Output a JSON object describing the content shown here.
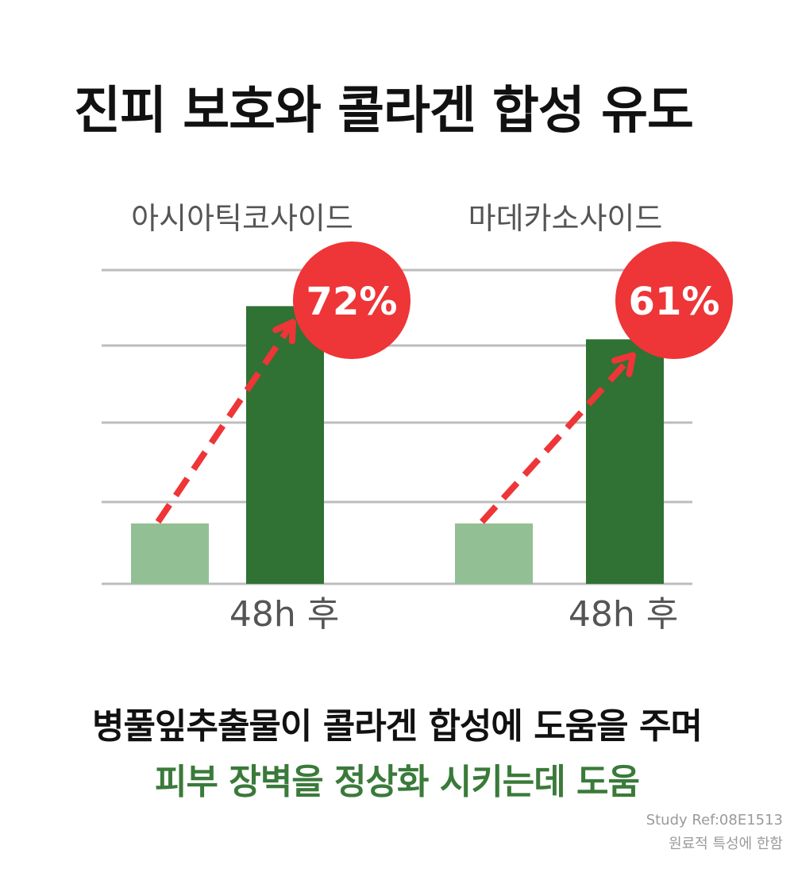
{
  "title": "진피 보호와 콜라겐 합성 유도",
  "chart_data": [
    {
      "type": "bar",
      "title": "아시아틱코사이드",
      "categories": [
        "",
        "48h 후"
      ],
      "values": [
        1.0,
        1.72
      ],
      "badge": "72%",
      "colors": [
        "#93bf95",
        "#2f7233"
      ]
    },
    {
      "type": "bar",
      "title": "마데카소사이드",
      "categories": [
        "",
        "48h 후"
      ],
      "values": [
        1.0,
        1.61
      ],
      "badge": "61%",
      "colors": [
        "#93bf95",
        "#2f7233"
      ]
    }
  ],
  "colors": {
    "accent": "#ee3537",
    "grid": "#bdbdbd",
    "highlight_text": "#3a7a3a"
  },
  "caption": {
    "line1": "병풀잎추출물이 콜라겐 합성에 도움을 주며",
    "line2": "피부 장벽을 정상화 시키는데 도움"
  },
  "footnote": {
    "ref": "Study Ref:08E1513",
    "note": "원료적 특성에 한함"
  }
}
